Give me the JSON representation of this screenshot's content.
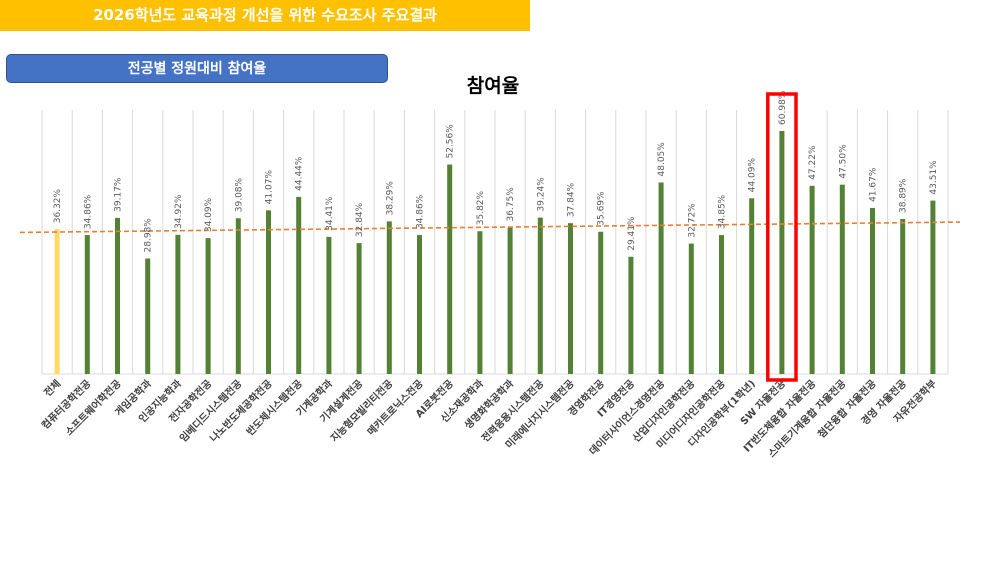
{
  "header": {
    "banner_title": "2026학년도 교육과정 개선을 위한 수요조사 주요결과",
    "section_label": "전공별 정원대비 참여율"
  },
  "chart_data": {
    "type": "bar",
    "title": "참여율",
    "categories": [
      "전체",
      "컴퓨터공학전공",
      "소프트웨어학전공",
      "게임공학과",
      "인공지능학과",
      "전자공학전공",
      "임베디드시스템전공",
      "나노반도체공학전공",
      "반도체시스템전공",
      "기계공학과",
      "기계설계전공",
      "지능형모빌리티전공",
      "메카트로닉스전공",
      "AI로봇전공",
      "신소재공학과",
      "생명화학공학과",
      "전력응용시스템전공",
      "미래에너지시스템전공",
      "경영학전공",
      "IT경영전공",
      "데이터사이언스경영전공",
      "산업디자인공학전공",
      "미디어디자인공학전공",
      "디자인공학부(1학년)",
      "SW 자율전공",
      "IT반도체융합 자율전공",
      "스마트기계융합 자율전공",
      "첨단융합 자율전공",
      "경영 자율전공",
      "자유전공학부"
    ],
    "values": [
      36.32,
      34.86,
      39.17,
      28.98,
      34.92,
      34.09,
      39.08,
      41.07,
      44.44,
      34.41,
      32.84,
      38.29,
      34.86,
      52.56,
      35.82,
      36.75,
      39.24,
      37.84,
      35.69,
      29.41,
      48.05,
      32.72,
      34.85,
      44.09,
      60.98,
      47.22,
      47.5,
      41.67,
      38.89,
      43.51
    ],
    "value_labels": [
      "36.32%",
      "34.86%",
      "39.17%",
      "28.98%",
      "34.92%",
      "34.09%",
      "39.08%",
      "41.07%",
      "44.44%",
      "34.41%",
      "32.84%",
      "38.29%",
      "34.86%",
      "52.56%",
      "35.82%",
      "36.75%",
      "39.24%",
      "37.84%",
      "35.69%",
      "29.41%",
      "48.05%",
      "32.72%",
      "34.85%",
      "44.09%",
      "60.98%",
      "47.22%",
      "47.50%",
      "41.67%",
      "38.89%",
      "43.51%"
    ],
    "ylim": [
      0,
      70
    ],
    "grid": true,
    "highlight_index": 24,
    "average_trendline": true,
    "colors": {
      "first_bar": "#FFD966",
      "bars": "#548235",
      "trendline": "#ED7D31",
      "highlight_box": "#FF0000",
      "gridline": "#D9D9D9"
    }
  }
}
